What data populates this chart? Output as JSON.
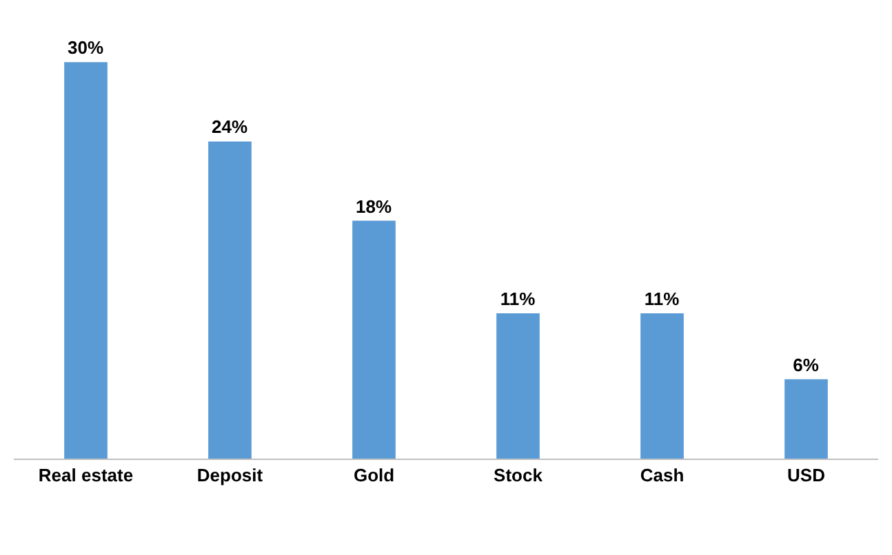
{
  "chart_data": {
    "type": "bar",
    "categories": [
      "Real estate",
      "Deposit",
      "Gold",
      "Stock",
      "Cash",
      "USD"
    ],
    "values": [
      30,
      24,
      18,
      11,
      11,
      6
    ],
    "value_labels": [
      "30%",
      "24%",
      "18%",
      "11%",
      "11%",
      "6%"
    ],
    "color": "#5b9bd5"
  }
}
